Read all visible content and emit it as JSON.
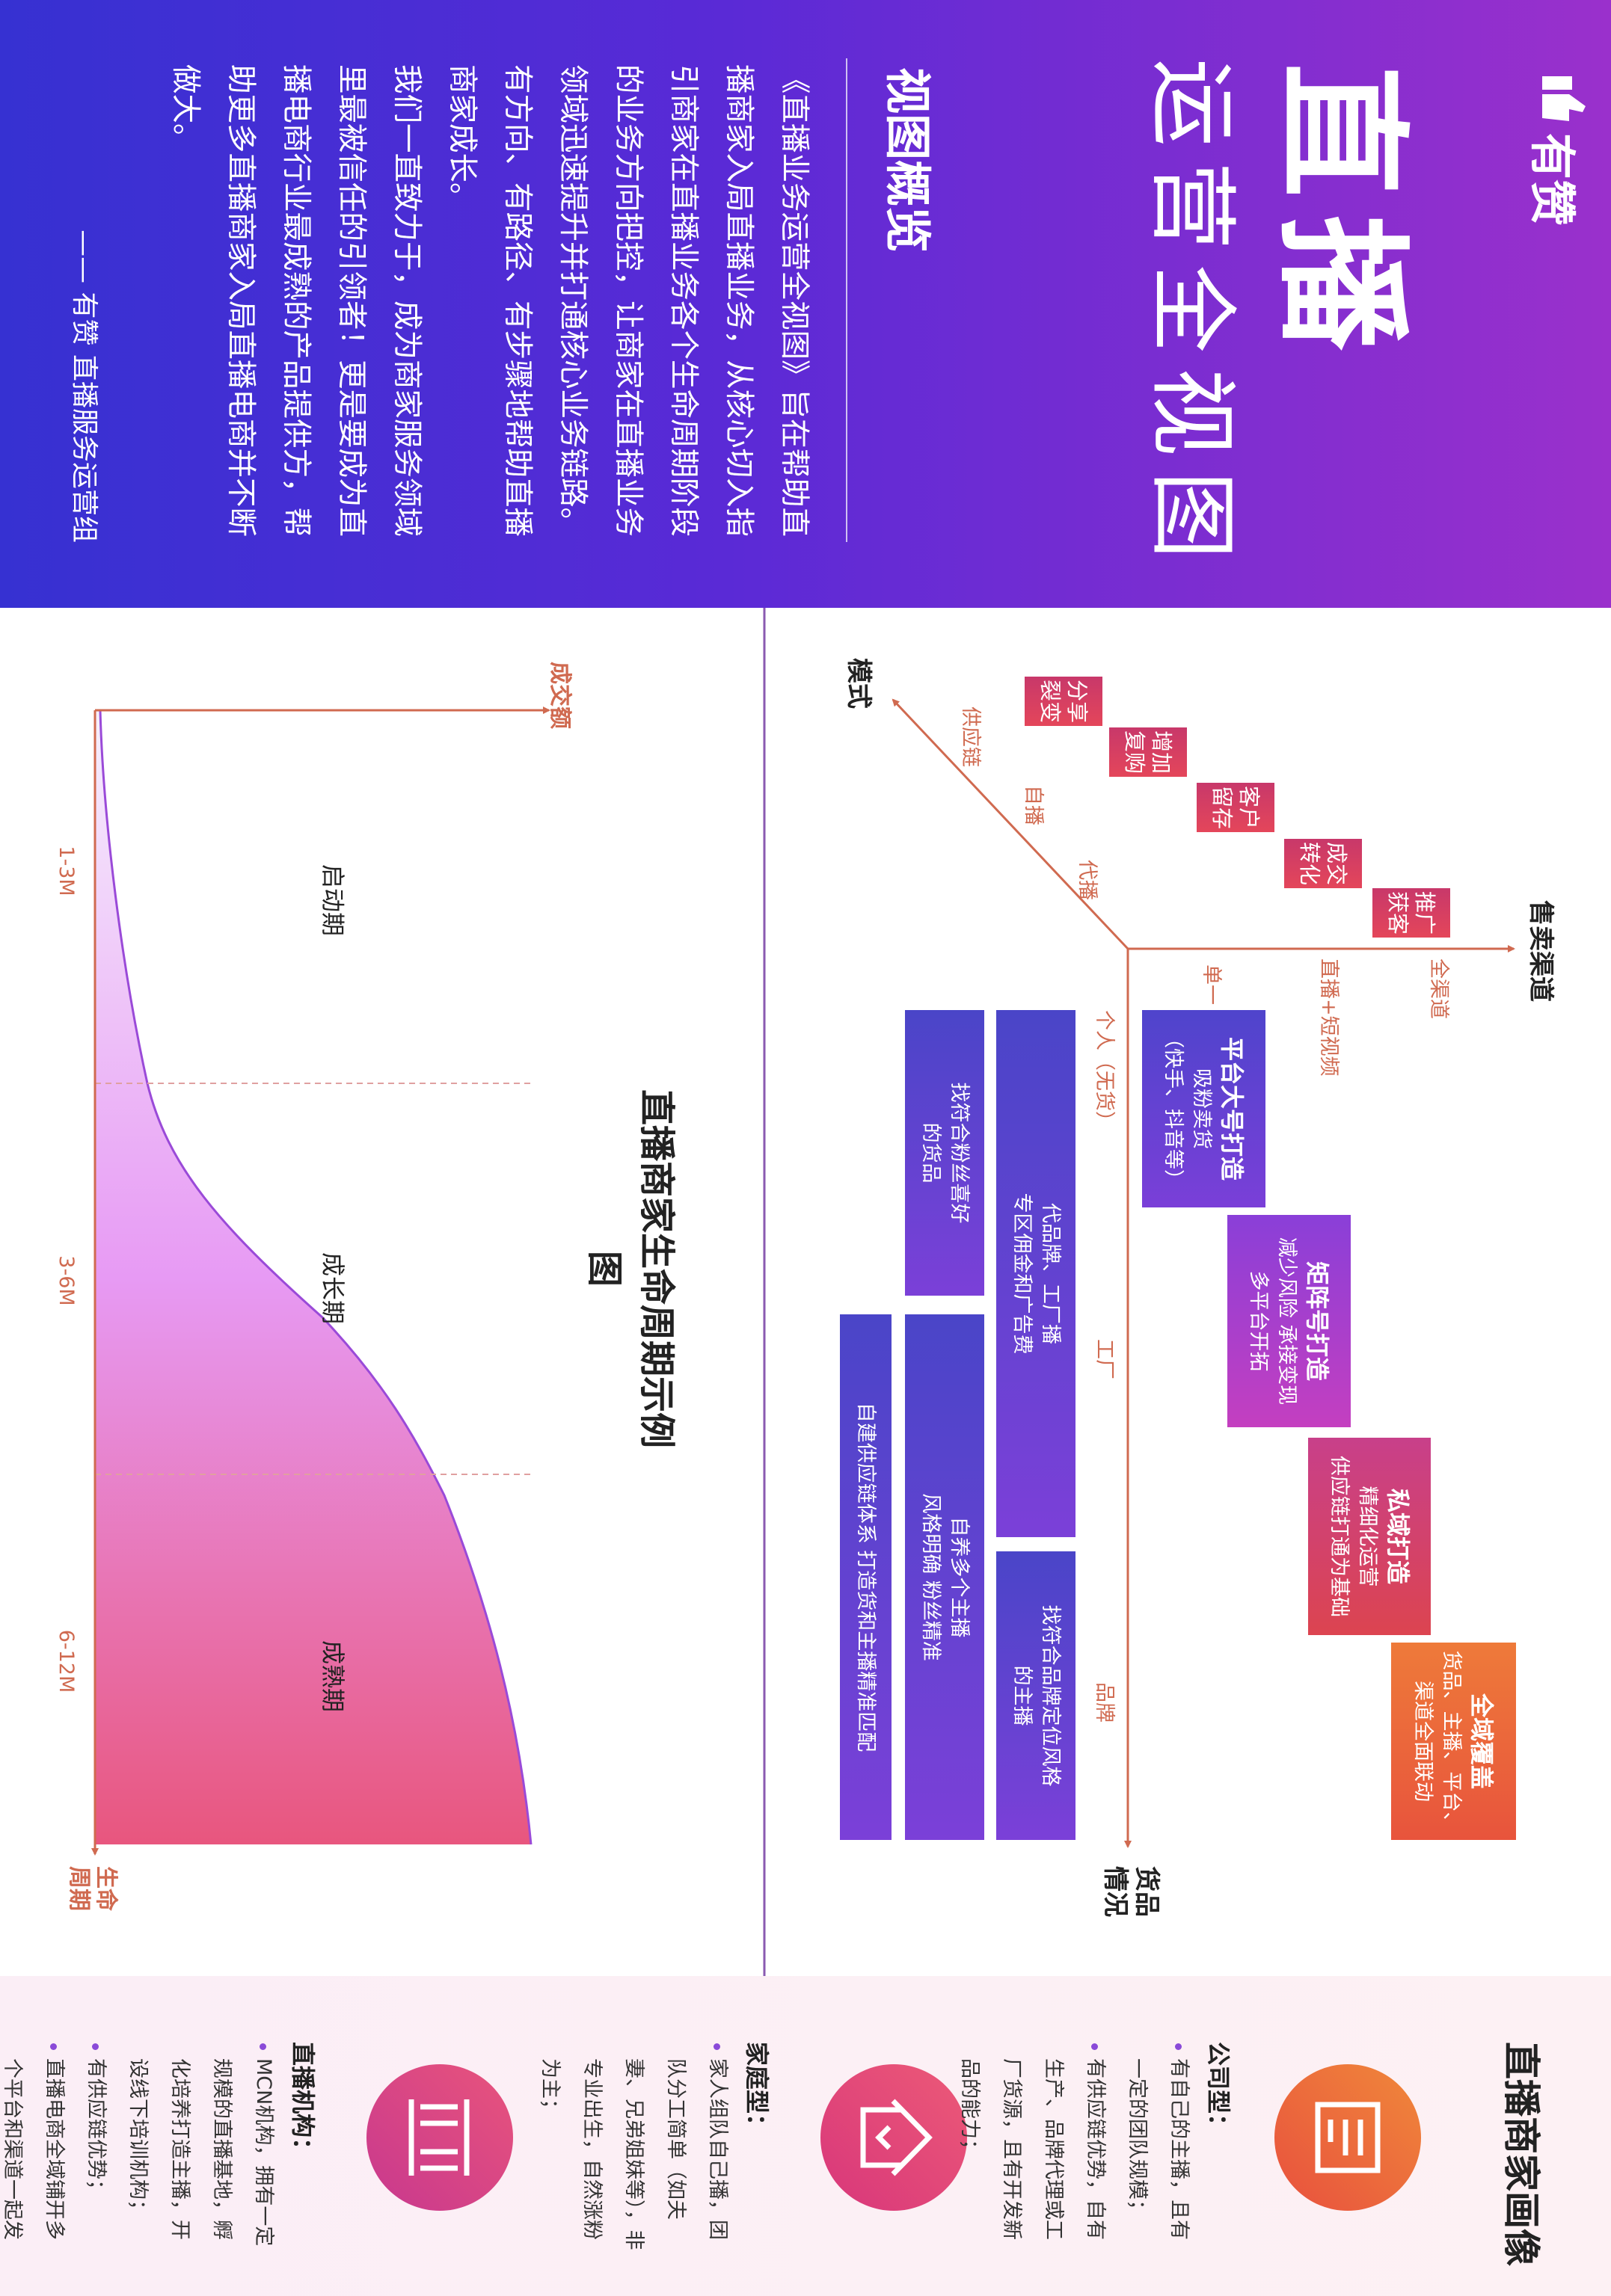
{
  "header": {
    "logo": "有赞",
    "title": "直播",
    "subtitle": "运营全视图"
  },
  "overview": {
    "heading": "视图概览",
    "paragraphs": [
      "《直播业务运营全视图》旨在帮助直播商家入局直播业务，从核心切入指引商家在直播业务各个生命周期阶段的业务方向把控，让商家在直播业务领域迅速提升并打通核心业务链路。有方向、有路径、有步骤地帮助直播商家成长。",
      "我们一直致力于，成为商家服务领域里最被信任的引领者！更是要成为直播电商行业最成熟的产品提供方，帮助更多直播商家入局直播电商并不断做大。"
    ],
    "signature": "—— 有赞 直播服务运营组"
  },
  "matrix": {
    "channel_axis": {
      "label": "售卖渠道",
      "ticks": [
        "单一",
        "直播+短视频",
        "全渠道"
      ]
    },
    "mode_axis": {
      "label": "模式",
      "ticks": [
        "代播",
        "自播",
        "供应链"
      ]
    },
    "goods_axis": {
      "label": "货品情况",
      "ticks": [
        "个人（无货）",
        "工厂",
        "品牌"
      ]
    },
    "stages": [
      "推广获客",
      "成交转化",
      "客户留存",
      "增加复购",
      "分享裂变"
    ],
    "cards": [
      {
        "lines": [
          "平台大号打造",
          "吸粉卖货",
          "（快手、抖音等）"
        ]
      },
      {
        "lines": [
          "矩阵号打造",
          "减少风险 承接变现",
          "多平台开拓"
        ]
      },
      {
        "lines": [
          "私域打造",
          "精细化运营",
          "供应链打通为基础"
        ]
      },
      {
        "lines": [
          "全域覆盖",
          "货品、主播、平台、",
          "渠道全面联动"
        ]
      },
      {
        "lines": [
          "代品牌、工厂播",
          "专区佣金和广告费"
        ]
      },
      {
        "lines": [
          "找符合粉丝喜好",
          "的货品"
        ]
      },
      {
        "lines": [
          "找符合品牌定位风格",
          "的主播"
        ]
      },
      {
        "lines": [
          "自养多个主播",
          "风格明确 粉丝精准"
        ]
      },
      {
        "lines": [
          "自建供应链体系 打造货和主播精准匹配"
        ]
      }
    ]
  },
  "lifecycle": {
    "title": "直播商家生命周期示例图",
    "y_label": "成交额",
    "x_label": "生命周期",
    "periods": [
      "1-3M",
      "3-6M",
      "6-12M"
    ],
    "stages": [
      "启动期",
      "成长期",
      "成熟期"
    ]
  },
  "portrait": {
    "title": "直播商家画像",
    "types": [
      {
        "name": "公司型：",
        "items": [
          "有自己的主播，且有一定的团队规模；",
          "有供应链优势，自有生产、品牌代理或工厂货源，且有开发新品的能力；"
        ]
      },
      {
        "name": "家庭型：",
        "items": [
          "家人组队自己播，团队分工简单（如夫妻、兄弟姐妹等），非专业出生，自然涨粉为主；"
        ]
      },
      {
        "name": "直播机构：",
        "items": [
          "MCN机构，拥有一定规模的直播基地，孵化培养打造主播，开设线下培训机构；",
          "有供应链优势；",
          "直播电商全域铺开多个平台和渠道一起发力；"
        ]
      }
    ]
  }
}
